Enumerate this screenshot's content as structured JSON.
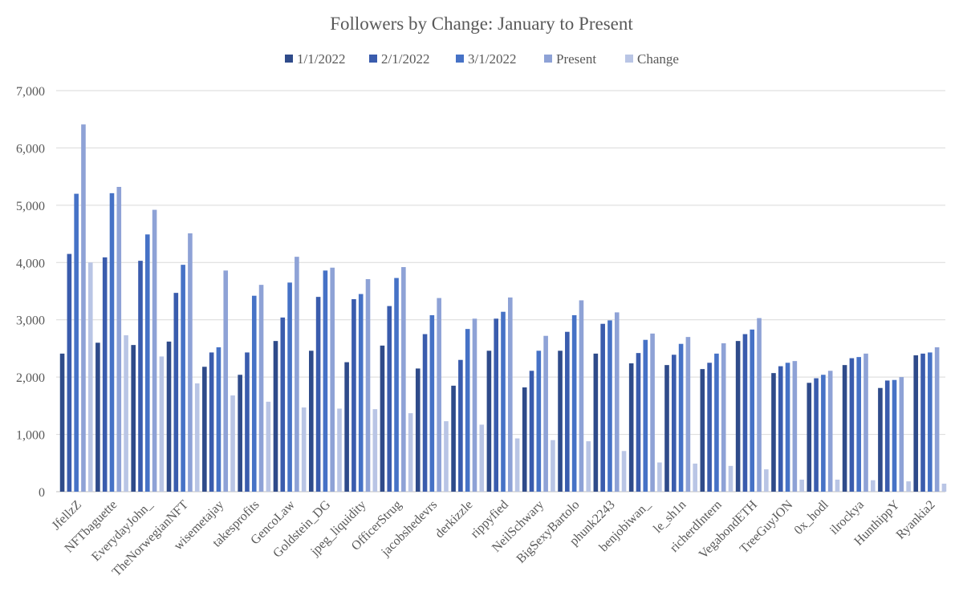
{
  "chart_data": {
    "type": "bar",
    "title": "Followers by Change: January to Present",
    "xlabel": "",
    "ylabel": "",
    "ylim": [
      0,
      7000
    ],
    "yticks": [
      0,
      1000,
      2000,
      3000,
      4000,
      5000,
      6000,
      7000
    ],
    "ytick_labels": [
      "0",
      "1,000",
      "2,000",
      "3,000",
      "4,000",
      "5,000",
      "6,000",
      "7,000"
    ],
    "grid": true,
    "legend_position": "top",
    "categories": [
      "JfellzZ",
      "NFTbaguette",
      "EverydayJohn_",
      "TheNorwegianNFT",
      "wisemetajay",
      "takesprofits",
      "GencoLaw",
      "Goldstein_DG",
      "jpeg_liquidity",
      "OfficerStrug",
      "jacobshedevrs",
      "derkizzle",
      "rippyfied",
      "NeilSchwary",
      "BigSexyBartolo",
      "phunk2243",
      "benjobiwan_",
      "le_sh1n",
      "richerdIntern",
      "VegabondETH",
      "TreeGuyJON",
      "0x_hodl",
      "ilrockya",
      "HunthippY",
      "Ryankia2"
    ],
    "series": [
      {
        "name": "1/1/2022",
        "color": "#2f4b8a",
        "values": [
          2410,
          2600,
          2560,
          2620,
          2180,
          2040,
          2630,
          2460,
          2260,
          2550,
          2150,
          1850,
          2460,
          1820,
          2460,
          2410,
          2240,
          2210,
          2140,
          2630,
          2070,
          1900,
          2210,
          1810,
          2380
        ]
      },
      {
        "name": "2/1/2022",
        "color": "#3a5cad",
        "values": [
          4150,
          4090,
          4030,
          3470,
          2430,
          2430,
          3040,
          3400,
          3360,
          3240,
          2750,
          2300,
          3020,
          2110,
          2790,
          2930,
          2420,
          2390,
          2250,
          2750,
          2190,
          1980,
          2330,
          1940,
          2410
        ]
      },
      {
        "name": "3/1/2022",
        "color": "#4672c6",
        "values": [
          5200,
          5210,
          4490,
          3960,
          2520,
          3420,
          3650,
          3860,
          3450,
          3730,
          3080,
          2840,
          3140,
          2460,
          3080,
          2990,
          2650,
          2580,
          2410,
          2830,
          2250,
          2040,
          2350,
          1950,
          2430
        ]
      },
      {
        "name": "Present",
        "color": "#8ea2d6",
        "values": [
          6410,
          5320,
          4920,
          4510,
          3860,
          3610,
          4100,
          3910,
          3710,
          3920,
          3380,
          3020,
          3390,
          2720,
          3340,
          3130,
          2760,
          2700,
          2590,
          3030,
          2280,
          2110,
          2410,
          2000,
          2520
        ]
      },
      {
        "name": "Change",
        "color": "#b9c5e5",
        "values": [
          4000,
          2730,
          2360,
          1890,
          1680,
          1570,
          1470,
          1450,
          1440,
          1370,
          1230,
          1170,
          930,
          900,
          880,
          710,
          510,
          490,
          450,
          390,
          210,
          210,
          200,
          180,
          140
        ]
      }
    ]
  }
}
